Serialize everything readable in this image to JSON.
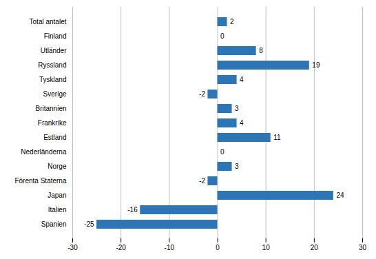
{
  "chart_data": {
    "type": "bar",
    "orientation": "horizontal",
    "categories": [
      "Spanien",
      "Italien",
      "Japan",
      "Förenta Staterna",
      "Norge",
      "Nederländerna",
      "Estland",
      "Frankrike",
      "Britannien",
      "Sverige",
      "Tyskland",
      "Ryssland",
      "Utländer",
      "Finland",
      "Total antalet"
    ],
    "values": [
      -25,
      -16,
      24,
      -2,
      3,
      0,
      11,
      4,
      3,
      -2,
      4,
      19,
      8,
      0,
      2
    ],
    "color": "#2E75B6",
    "xlim": [
      -30,
      30
    ],
    "xticks": [
      -30,
      -20,
      -10,
      0,
      10,
      20,
      30
    ],
    "grid": true,
    "data_labels": true
  }
}
